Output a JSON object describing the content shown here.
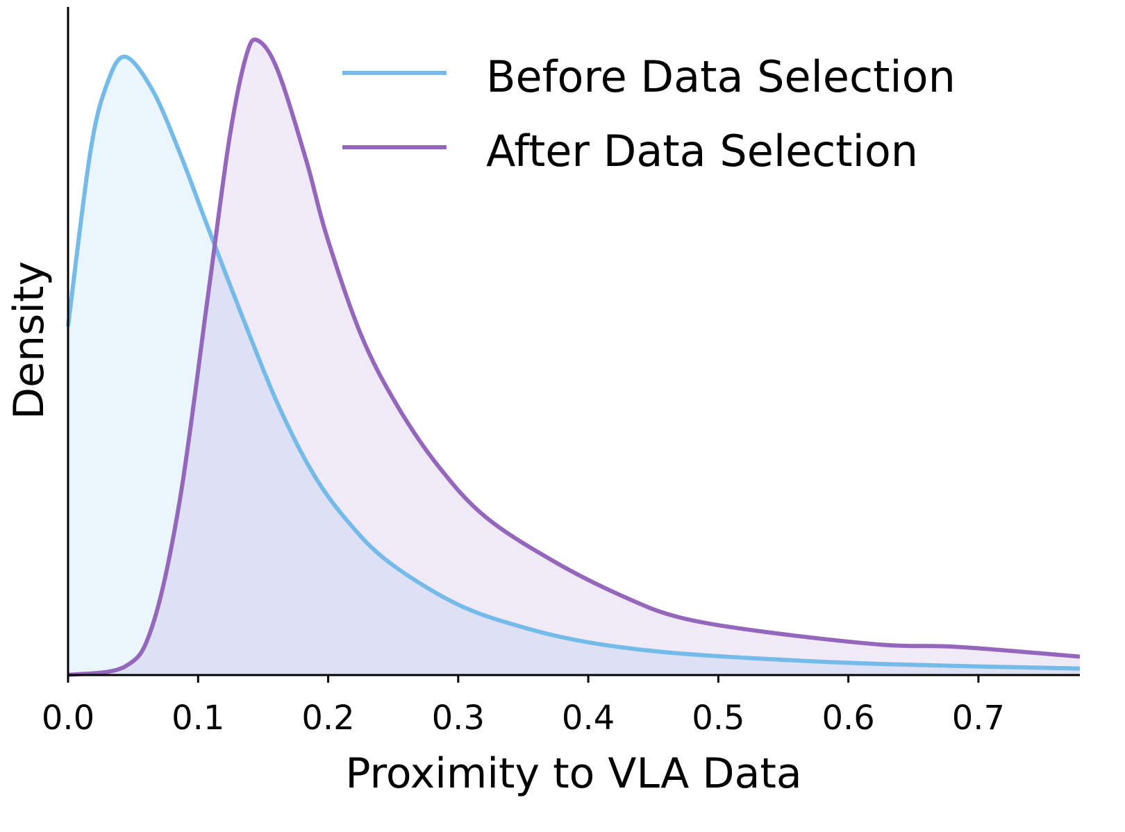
{
  "chart_data": {
    "type": "area",
    "title": "",
    "xlabel": "Proximity to VLA Data",
    "ylabel": "Density",
    "xlim": [
      0.0,
      0.778
    ],
    "ylim": [
      0,
      6.17
    ],
    "xticks": [
      "0.0",
      "0.1",
      "0.2",
      "0.3",
      "0.4",
      "0.5",
      "0.6",
      "0.7"
    ],
    "yticks": [],
    "grid": false,
    "legend_position": "top-right",
    "series": [
      {
        "name": "Before Data Selection",
        "color": "#74BBEA",
        "fill": "#EAF4FC",
        "x": [
          0.0,
          0.017,
          0.03,
          0.044,
          0.065,
          0.086,
          0.108,
          0.135,
          0.161,
          0.188,
          0.215,
          0.247,
          0.3,
          0.353,
          0.401,
          0.46,
          0.535,
          0.631,
          0.778
        ],
        "y": [
          3.22,
          4.82,
          5.46,
          5.71,
          5.4,
          4.82,
          4.12,
          3.28,
          2.51,
          1.87,
          1.42,
          1.04,
          0.65,
          0.43,
          0.3,
          0.21,
          0.15,
          0.1,
          0.06
        ]
      },
      {
        "name": "After Data Selection",
        "color": "#9467BD",
        "fill": "#EFE7F5",
        "x": [
          0.0,
          0.044,
          0.065,
          0.086,
          0.108,
          0.124,
          0.137,
          0.146,
          0.161,
          0.183,
          0.199,
          0.225,
          0.252,
          0.284,
          0.321,
          0.375,
          0.428,
          0.471,
          0.535,
          0.626,
          0.684,
          0.778
        ],
        "y": [
          0.0,
          0.08,
          0.46,
          1.62,
          3.54,
          4.95,
          5.72,
          5.86,
          5.59,
          4.76,
          4.05,
          3.15,
          2.51,
          1.94,
          1.46,
          1.04,
          0.72,
          0.53,
          0.4,
          0.28,
          0.26,
          0.17
        ]
      }
    ]
  }
}
